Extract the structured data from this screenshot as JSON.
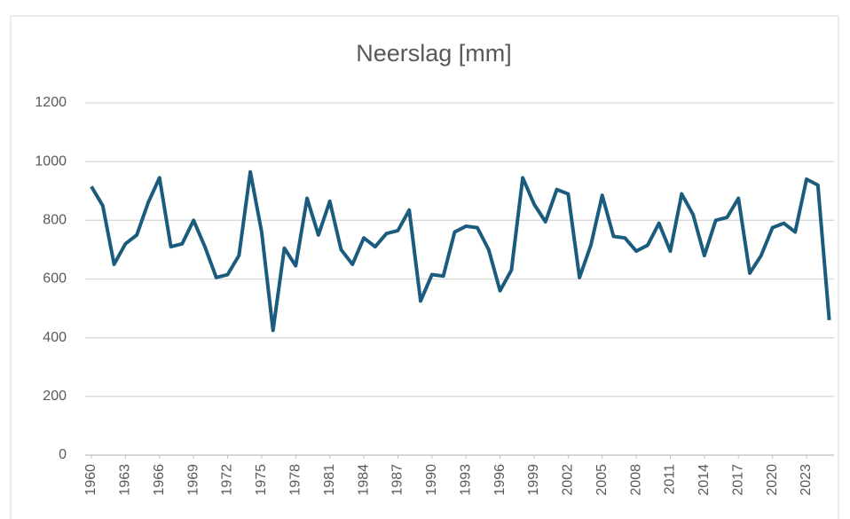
{
  "chart_data": {
    "type": "line",
    "title": "Neerslag [mm]",
    "x": [
      1960,
      1961,
      1962,
      1963,
      1964,
      1965,
      1966,
      1967,
      1968,
      1969,
      1970,
      1971,
      1972,
      1973,
      1974,
      1975,
      1976,
      1977,
      1978,
      1979,
      1980,
      1981,
      1982,
      1983,
      1984,
      1985,
      1986,
      1987,
      1988,
      1989,
      1990,
      1991,
      1992,
      1993,
      1994,
      1995,
      1996,
      1997,
      1998,
      1999,
      2000,
      2001,
      2002,
      2003,
      2004,
      2005,
      2006,
      2007,
      2008,
      2009,
      2010,
      2011,
      2012,
      2013,
      2014,
      2015,
      2016,
      2017,
      2018,
      2019,
      2020,
      2021,
      2022,
      2023,
      2024,
      2025
    ],
    "series": [
      {
        "name": "Neerslag [mm]",
        "color": "#1b5c7e",
        "values": [
          915,
          850,
          650,
          720,
          750,
          860,
          945,
          710,
          720,
          800,
          710,
          605,
          615,
          680,
          965,
          760,
          425,
          705,
          645,
          875,
          750,
          865,
          700,
          650,
          740,
          710,
          755,
          765,
          835,
          525,
          615,
          610,
          760,
          780,
          775,
          700,
          560,
          630,
          945,
          855,
          795,
          905,
          890,
          605,
          715,
          885,
          745,
          740,
          695,
          715,
          790,
          695,
          890,
          820,
          680,
          800,
          810,
          875,
          620,
          680,
          775,
          790,
          760,
          940,
          920,
          460
        ]
      }
    ],
    "xlim": [
      1960,
      2025
    ],
    "xticks": [
      1960,
      1963,
      1966,
      1969,
      1972,
      1975,
      1978,
      1981,
      1984,
      1987,
      1990,
      1993,
      1996,
      1999,
      2002,
      2005,
      2008,
      2011,
      2014,
      2017,
      2020,
      2023
    ],
    "ylim": [
      0,
      1200
    ],
    "yticks": [
      0,
      200,
      400,
      600,
      800,
      1000,
      1200
    ],
    "grid": true
  }
}
